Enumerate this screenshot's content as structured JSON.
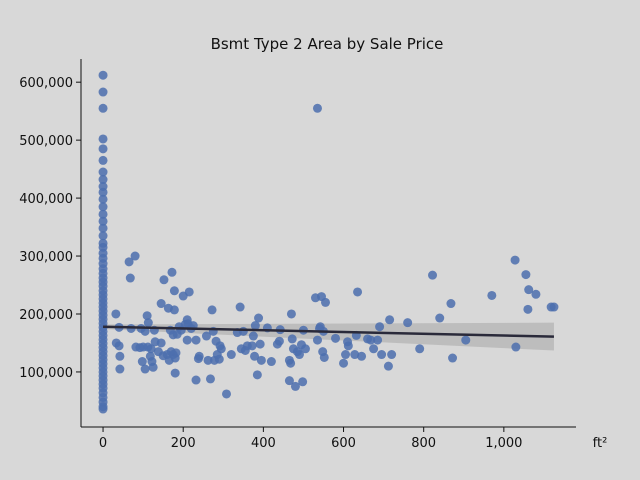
{
  "chart_data": {
    "type": "scatter",
    "title": "Bsmt Type 2 Area by Sale Price",
    "xlabel": "ft²",
    "ylabel": "",
    "xlim": [
      -55,
      1180
    ],
    "ylim": [
      5000,
      640000
    ],
    "x_ticks": [
      0,
      200,
      400,
      600,
      800,
      1000
    ],
    "x_tick_labels": [
      "0",
      "200",
      "400",
      "600",
      "800",
      "1,000"
    ],
    "y_ticks": [
      100000,
      200000,
      300000,
      400000,
      500000,
      600000
    ],
    "y_tick_labels": [
      "100,000",
      "200,000",
      "300,000",
      "400,000",
      "500,000",
      "600,000"
    ],
    "grid": false,
    "colors": {
      "points": "#4c6fae",
      "trend_line": "#2a2a3a",
      "confidence_band": "#b4b4b4",
      "background": "#d8d8d8"
    },
    "trend_line": {
      "x": [
        0,
        1125
      ],
      "y": [
        178000,
        161000
      ]
    },
    "confidence_band": {
      "x": [
        0,
        1125
      ],
      "upper": [
        182000,
        185000
      ],
      "lower": [
        174000,
        137000
      ]
    },
    "points": [
      [
        0,
        612000
      ],
      [
        0,
        583000
      ],
      [
        0,
        555000
      ],
      [
        0,
        502000
      ],
      [
        0,
        485000
      ],
      [
        0,
        465000
      ],
      [
        0,
        445000
      ],
      [
        0,
        432000
      ],
      [
        0,
        420000
      ],
      [
        0,
        410000
      ],
      [
        0,
        398000
      ],
      [
        0,
        385000
      ],
      [
        0,
        372000
      ],
      [
        0,
        360000
      ],
      [
        0,
        348000
      ],
      [
        0,
        335000
      ],
      [
        0,
        322000
      ],
      [
        0,
        315000
      ],
      [
        0,
        305000
      ],
      [
        0,
        296000
      ],
      [
        0,
        287000
      ],
      [
        0,
        278000
      ],
      [
        0,
        270000
      ],
      [
        0,
        262000
      ],
      [
        0,
        255000
      ],
      [
        0,
        248000
      ],
      [
        0,
        240000
      ],
      [
        0,
        233000
      ],
      [
        0,
        226000
      ],
      [
        0,
        219000
      ],
      [
        0,
        212000
      ],
      [
        0,
        205000
      ],
      [
        0,
        198000
      ],
      [
        0,
        191000
      ],
      [
        0,
        184000
      ],
      [
        0,
        177000
      ],
      [
        0,
        170000
      ],
      [
        0,
        163000
      ],
      [
        0,
        156000
      ],
      [
        0,
        149000
      ],
      [
        0,
        142000
      ],
      [
        0,
        135000
      ],
      [
        0,
        128000
      ],
      [
        0,
        121000
      ],
      [
        0,
        114000
      ],
      [
        0,
        107000
      ],
      [
        0,
        100000
      ],
      [
        0,
        93000
      ],
      [
        0,
        86000
      ],
      [
        0,
        79000
      ],
      [
        0,
        72000
      ],
      [
        0,
        64000
      ],
      [
        0,
        56000
      ],
      [
        0,
        48000
      ],
      [
        0,
        40000
      ],
      [
        0,
        36000
      ],
      [
        32,
        200000
      ],
      [
        33,
        150000
      ],
      [
        40,
        145000
      ],
      [
        40,
        177000
      ],
      [
        42,
        127000
      ],
      [
        42,
        105000
      ],
      [
        65,
        290000
      ],
      [
        68,
        262000
      ],
      [
        70,
        175000
      ],
      [
        80,
        300000
      ],
      [
        82,
        143000
      ],
      [
        92,
        142000
      ],
      [
        95,
        175000
      ],
      [
        98,
        118000
      ],
      [
        100,
        143000
      ],
      [
        105,
        170000
      ],
      [
        105,
        105000
      ],
      [
        110,
        197000
      ],
      [
        112,
        143000
      ],
      [
        113,
        185000
      ],
      [
        118,
        127000
      ],
      [
        120,
        140000
      ],
      [
        122,
        118000
      ],
      [
        125,
        108000
      ],
      [
        128,
        172000
      ],
      [
        130,
        152000
      ],
      [
        138,
        135000
      ],
      [
        145,
        218000
      ],
      [
        145,
        150000
      ],
      [
        150,
        128000
      ],
      [
        152,
        259000
      ],
      [
        160,
        130000
      ],
      [
        163,
        210000
      ],
      [
        165,
        120000
      ],
      [
        168,
        172000
      ],
      [
        170,
        135000
      ],
      [
        172,
        272000
      ],
      [
        175,
        130000
      ],
      [
        175,
        164000
      ],
      [
        178,
        240000
      ],
      [
        178,
        207000
      ],
      [
        180,
        98000
      ],
      [
        180,
        124000
      ],
      [
        182,
        133000
      ],
      [
        185,
        165000
      ],
      [
        190,
        178000
      ],
      [
        195,
        172000
      ],
      [
        200,
        231000
      ],
      [
        205,
        182000
      ],
      [
        210,
        155000
      ],
      [
        210,
        190000
      ],
      [
        212,
        183000
      ],
      [
        215,
        238000
      ],
      [
        220,
        175000
      ],
      [
        225,
        180000
      ],
      [
        232,
        155000
      ],
      [
        232,
        86000
      ],
      [
        238,
        123000
      ],
      [
        240,
        127000
      ],
      [
        258,
        162000
      ],
      [
        262,
        120000
      ],
      [
        268,
        88000
      ],
      [
        272,
        207000
      ],
      [
        275,
        170000
      ],
      [
        278,
        120000
      ],
      [
        282,
        153000
      ],
      [
        285,
        130000
      ],
      [
        290,
        122000
      ],
      [
        292,
        145000
      ],
      [
        295,
        140000
      ],
      [
        308,
        62000
      ],
      [
        320,
        130000
      ],
      [
        335,
        168000
      ],
      [
        342,
        212000
      ],
      [
        345,
        140000
      ],
      [
        350,
        170000
      ],
      [
        355,
        137000
      ],
      [
        360,
        145000
      ],
      [
        372,
        145000
      ],
      [
        375,
        162000
      ],
      [
        378,
        127000
      ],
      [
        380,
        180000
      ],
      [
        385,
        95000
      ],
      [
        388,
        193000
      ],
      [
        392,
        148000
      ],
      [
        395,
        120000
      ],
      [
        410,
        176000
      ],
      [
        420,
        118000
      ],
      [
        435,
        148000
      ],
      [
        440,
        153000
      ],
      [
        442,
        173000
      ],
      [
        465,
        85000
      ],
      [
        465,
        120000
      ],
      [
        468,
        115000
      ],
      [
        470,
        200000
      ],
      [
        472,
        157000
      ],
      [
        475,
        140000
      ],
      [
        480,
        75000
      ],
      [
        485,
        135000
      ],
      [
        490,
        130000
      ],
      [
        495,
        147000
      ],
      [
        498,
        83000
      ],
      [
        500,
        172000
      ],
      [
        505,
        140000
      ],
      [
        530,
        228000
      ],
      [
        535,
        155000
      ],
      [
        535,
        555000
      ],
      [
        540,
        175000
      ],
      [
        542,
        178000
      ],
      [
        545,
        230000
      ],
      [
        548,
        135000
      ],
      [
        550,
        170000
      ],
      [
        552,
        125000
      ],
      [
        555,
        220000
      ],
      [
        580,
        158000
      ],
      [
        600,
        115000
      ],
      [
        605,
        130000
      ],
      [
        610,
        152000
      ],
      [
        612,
        145000
      ],
      [
        628,
        130000
      ],
      [
        632,
        163000
      ],
      [
        635,
        238000
      ],
      [
        645,
        127000
      ],
      [
        660,
        157000
      ],
      [
        668,
        155000
      ],
      [
        675,
        140000
      ],
      [
        685,
        155000
      ],
      [
        690,
        178000
      ],
      [
        695,
        130000
      ],
      [
        712,
        110000
      ],
      [
        715,
        190000
      ],
      [
        720,
        130000
      ],
      [
        760,
        185000
      ],
      [
        790,
        140000
      ],
      [
        822,
        267000
      ],
      [
        840,
        193000
      ],
      [
        868,
        218000
      ],
      [
        872,
        124000
      ],
      [
        905,
        155000
      ],
      [
        970,
        232000
      ],
      [
        1028,
        293000
      ],
      [
        1030,
        143000
      ],
      [
        1055,
        268000
      ],
      [
        1060,
        208000
      ],
      [
        1062,
        242000
      ],
      [
        1080,
        234000
      ],
      [
        1118,
        212000
      ],
      [
        1125,
        212000
      ]
    ]
  }
}
